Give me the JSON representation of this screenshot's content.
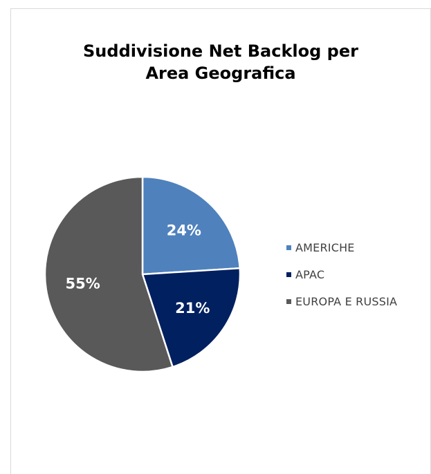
{
  "chart_data": {
    "type": "pie",
    "title": "Suddivisione Net Backlog per Area Geografica",
    "title_lines": [
      "Suddivisione Net Backlog per",
      "Area Geografica"
    ],
    "legend_position": "right",
    "slices": [
      {
        "label": "AMERICHE",
        "value": 24,
        "display": "24%",
        "color": "#4f81bd"
      },
      {
        "label": "APAC",
        "value": 21,
        "display": "21%",
        "color": "#002060"
      },
      {
        "label": "EUROPA E RUSSIA",
        "value": 55,
        "display": "55%",
        "color": "#595959"
      }
    ]
  }
}
